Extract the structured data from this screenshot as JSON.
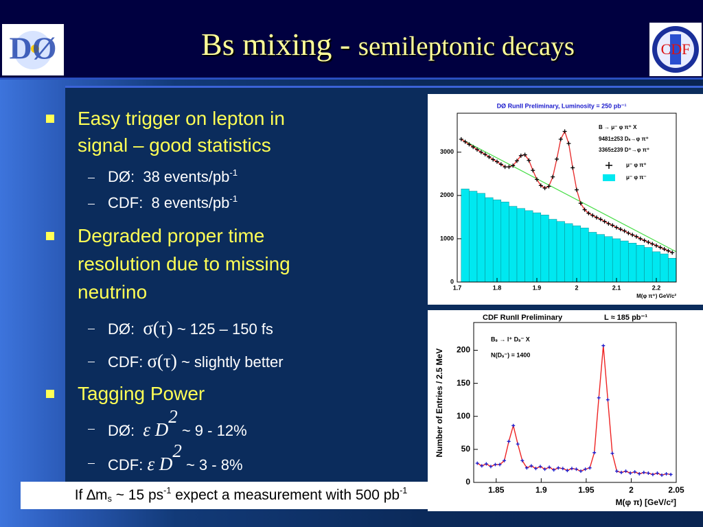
{
  "header": {
    "title_parts": [
      "Bs mixing - ",
      "semileptonic decays"
    ],
    "logo_left": "DØ",
    "logo_right": "CDF"
  },
  "bullets": [
    {
      "lines": [
        "Easy trigger on lepton in",
        "signal – good statistics"
      ],
      "subs": [
        {
          "parts": [
            "DØ:  38 events/pb",
            "-1"
          ]
        },
        {
          "parts": [
            "CDF:  8 events/pb",
            "-1"
          ]
        }
      ]
    },
    {
      "lines": [
        "Degraded proper time",
        "resolution due to missing",
        "neutrino"
      ],
      "subs": [
        {
          "parts": [
            "DØ:  ",
            "σ(τ)",
            " ~ 125 – 150 fs"
          ]
        },
        {
          "parts": [
            "CDF: ",
            "σ(τ)",
            " ~ slightly better"
          ]
        }
      ]
    },
    {
      "lines": [
        "Tagging Power"
      ],
      "subs": [
        {
          "parts": [
            "DØ:  ",
            "ε D",
            "2",
            " ~ 9 - 12%"
          ]
        },
        {
          "parts": [
            "CDF: ",
            "ε D",
            "2",
            " ~ 3 - 8%"
          ]
        }
      ]
    }
  ],
  "footer": {
    "parts": [
      "If ∆m",
      "s",
      " ~ 15 ps",
      "-1",
      " expect a measurement with 500 pb",
      "-1"
    ]
  },
  "figures": [
    {
      "title": "DØ RunII  Preliminary, Luminosity = 250 pb⁻¹",
      "legend_text": [
        "B → μ⁻ φ π⁺ X",
        "9481±253  Dₛ→φ π⁺",
        "3365±239  D⁺→φ π⁺"
      ],
      "xlabel": "M(φ π⁺) GeV/c²",
      "xlim": [
        1.7,
        2.25
      ],
      "xticks": [
        1.7,
        1.8,
        1.9,
        2,
        2.1,
        2.2
      ],
      "ylim": [
        0,
        3900
      ],
      "yticks": [
        0,
        1000,
        2000,
        3000
      ],
      "bins": [
        1.71,
        1.73,
        1.75,
        1.77,
        1.79,
        1.81,
        1.83,
        1.85,
        1.87,
        1.89,
        1.91,
        1.93,
        1.95,
        1.97,
        1.99,
        2.01,
        2.03,
        2.05,
        2.07,
        2.09,
        2.11,
        2.13,
        2.15,
        2.17,
        2.19,
        2.21,
        2.23,
        2.25
      ],
      "series": [
        {
          "name": "μ⁻ φ π⁺",
          "type": "scatter",
          "color": "#000000",
          "line_color": "#e83030",
          "x": [
            1.71,
            1.72,
            1.73,
            1.74,
            1.75,
            1.76,
            1.77,
            1.78,
            1.79,
            1.8,
            1.81,
            1.82,
            1.83,
            1.84,
            1.85,
            1.86,
            1.87,
            1.88,
            1.89,
            1.9,
            1.91,
            1.92,
            1.93,
            1.94,
            1.95,
            1.96,
            1.97,
            1.98,
            1.99,
            2.0,
            2.01,
            2.02,
            2.03,
            2.04,
            2.05,
            2.06,
            2.07,
            2.08,
            2.09,
            2.1,
            2.11,
            2.12,
            2.13,
            2.14,
            2.15,
            2.16,
            2.17,
            2.18,
            2.19,
            2.2,
            2.21,
            2.22,
            2.23,
            2.24
          ],
          "values": [
            3300,
            3240,
            3180,
            3120,
            3060,
            3000,
            2950,
            2890,
            2830,
            2780,
            2720,
            2660,
            2660,
            2690,
            2800,
            2920,
            2940,
            2810,
            2580,
            2370,
            2230,
            2170,
            2210,
            2430,
            2840,
            3300,
            3480,
            3200,
            2640,
            2130,
            1820,
            1670,
            1590,
            1540,
            1490,
            1450,
            1400,
            1350,
            1310,
            1260,
            1220,
            1180,
            1130,
            1090,
            1050,
            1000,
            960,
            920,
            880,
            840,
            800,
            760,
            720,
            680
          ]
        },
        {
          "name": "μ⁻ φ π⁻",
          "type": "bar",
          "color": "#00e8f0",
          "values": [
            2150,
            2100,
            2050,
            1950,
            1900,
            1850,
            1750,
            1700,
            1650,
            1600,
            1550,
            1450,
            1400,
            1350,
            1300,
            1250,
            1150,
            1100,
            1050,
            1000,
            950,
            900,
            850,
            800,
            700,
            650,
            550
          ]
        },
        {
          "type": "line",
          "color": "#44dd44",
          "x": [
            1.71,
            2.25
          ],
          "values": [
            3300,
            700
          ]
        }
      ]
    },
    {
      "title": "CDF RunII Preliminary",
      "annotation": "L ≈ 185 pb⁻¹",
      "legend_text": [
        "Bₛ → l⁺ Dₛ⁻ X",
        "N(Dₛ⁻) = 1400"
      ],
      "xlabel": "M(φ π) [GeV/c²]",
      "ylabel": "Number of Entries / 2.5 MeV",
      "xlim": [
        1.825,
        2.05
      ],
      "xticks": [
        1.85,
        1.9,
        1.95,
        2,
        2.05
      ],
      "ylim": [
        0,
        242
      ],
      "yticks": [
        0,
        50,
        100,
        150,
        200
      ],
      "series": [
        {
          "type": "scatter",
          "color": "#1a1acc",
          "line_color": "#ee2222",
          "x": [
            1.829,
            1.834,
            1.839,
            1.844,
            1.849,
            1.854,
            1.859,
            1.864,
            1.869,
            1.874,
            1.879,
            1.884,
            1.889,
            1.894,
            1.899,
            1.904,
            1.909,
            1.914,
            1.919,
            1.924,
            1.929,
            1.934,
            1.939,
            1.944,
            1.949,
            1.954,
            1.959,
            1.964,
            1.969,
            1.974,
            1.979,
            1.984,
            1.989,
            1.994,
            1.999,
            2.004,
            2.009,
            2.014,
            2.019,
            2.024,
            2.029,
            2.034,
            2.039,
            2.044
          ],
          "values": [
            29,
            25,
            28,
            24,
            27,
            27,
            33,
            62,
            86,
            58,
            33,
            22,
            25,
            21,
            24,
            20,
            23,
            19,
            22,
            21,
            18,
            21,
            20,
            17,
            20,
            22,
            45,
            128,
            207,
            125,
            44,
            17,
            15,
            17,
            14,
            16,
            13,
            15,
            14,
            12,
            14,
            11,
            13,
            12
          ]
        }
      ]
    }
  ]
}
